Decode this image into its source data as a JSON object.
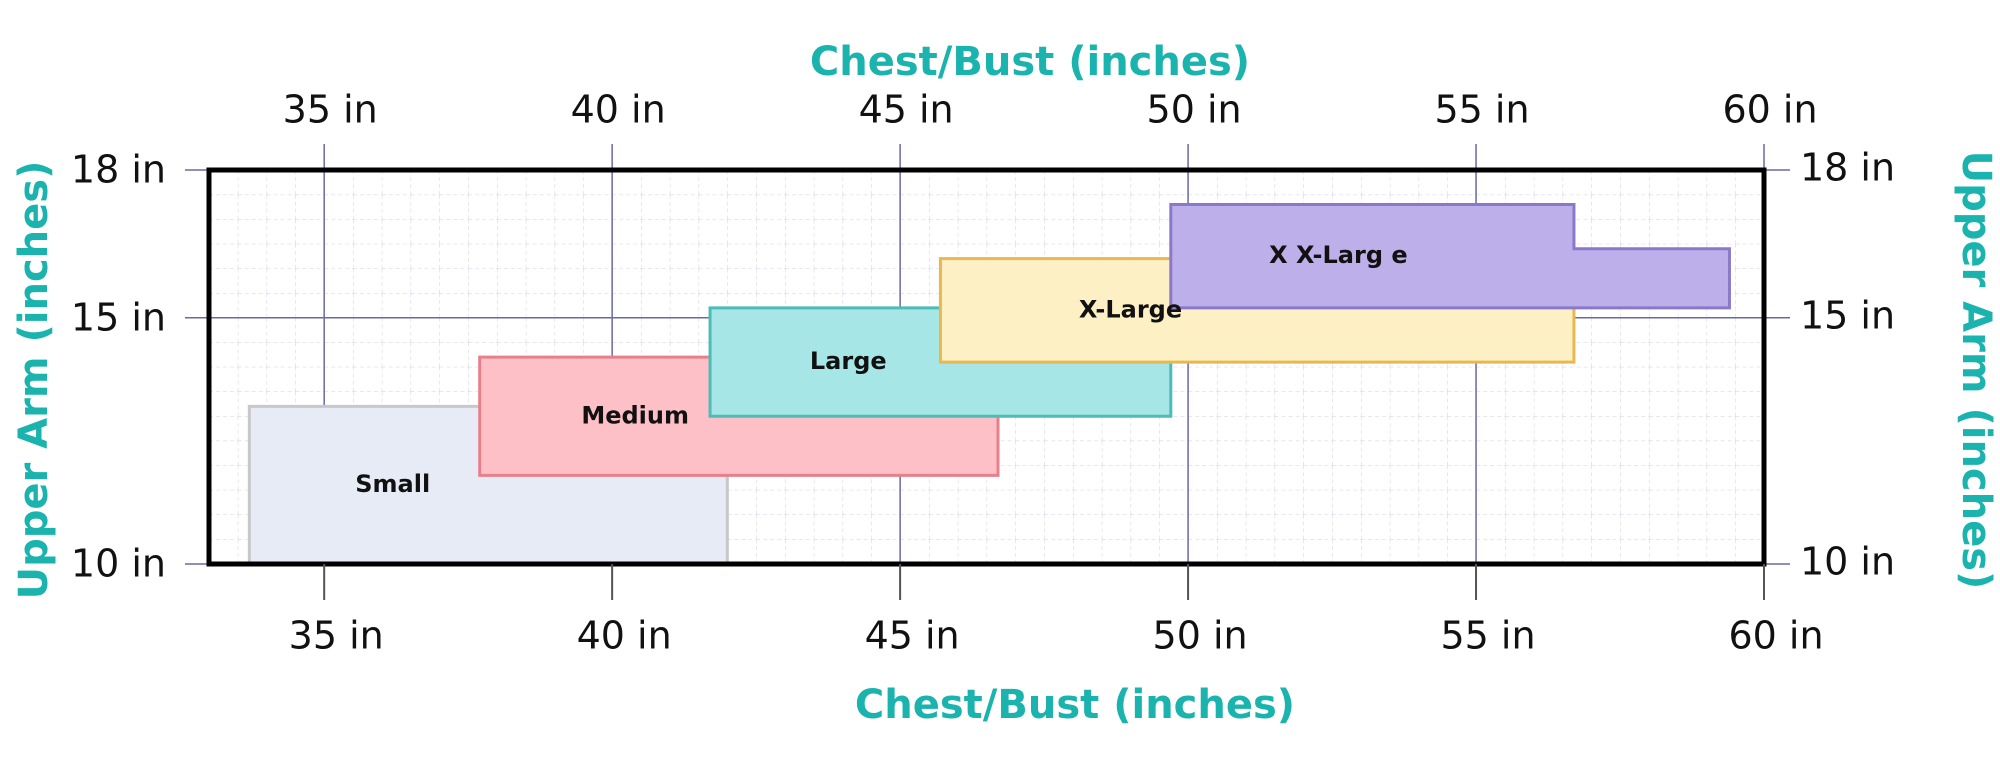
{
  "chart_data": {
    "type": "region",
    "x_label": "Chest/Bust (inches)",
    "y_label": "Upper Arm (inches)",
    "xlim": [
      33,
      60
    ],
    "ylim": [
      10,
      18
    ],
    "xticks": [
      {
        "value": 35,
        "label": "35 in"
      },
      {
        "value": 40,
        "label": "40 in"
      },
      {
        "value": 45,
        "label": "45 in"
      },
      {
        "value": 50,
        "label": "50 in"
      },
      {
        "value": 55,
        "label": "55 in"
      },
      {
        "value": 60,
        "label": "60 in"
      }
    ],
    "yticks": [
      {
        "value": 10,
        "label": "10 in"
      },
      {
        "value": 15,
        "label": "15 in"
      },
      {
        "value": 18,
        "label": "18 in"
      }
    ],
    "grid": true,
    "series": [
      {
        "name": "Small",
        "color": "#e6ebf5",
        "edge_color": "#c8c8c8",
        "points": [
          [
            33.7,
            10
          ],
          [
            33.7,
            13.2
          ],
          [
            42,
            13.2
          ],
          [
            42,
            10
          ]
        ]
      },
      {
        "name": "Medium",
        "color": "#fdc0c6",
        "edge_color": "#e8808c",
        "points": [
          [
            37.7,
            11.8
          ],
          [
            37.7,
            14.2
          ],
          [
            46.7,
            14.2
          ],
          [
            46.7,
            11.8
          ]
        ]
      },
      {
        "name": "Large",
        "color": "#a6e6e6",
        "edge_color": "#4dbcb6",
        "points": [
          [
            41.7,
            13
          ],
          [
            41.7,
            15.2
          ],
          [
            49.7,
            15.2
          ],
          [
            49.7,
            13
          ]
        ]
      },
      {
        "name": "X-Large",
        "color": "#fdf0c4",
        "edge_color": "#e8b850",
        "points": [
          [
            45.7,
            14.1
          ],
          [
            45.7,
            16.2
          ],
          [
            56.7,
            16.2
          ],
          [
            56.7,
            14.1
          ]
        ]
      },
      {
        "name": "X X-Larg e",
        "color": "#bdb0ea",
        "edge_color": "#8a78c8",
        "points": [
          [
            49.7,
            15.2
          ],
          [
            49.7,
            17.3
          ],
          [
            56.7,
            17.3
          ],
          [
            56.7,
            16.4
          ],
          [
            59.4,
            16.4
          ],
          [
            59.4,
            15.2
          ]
        ]
      }
    ]
  }
}
